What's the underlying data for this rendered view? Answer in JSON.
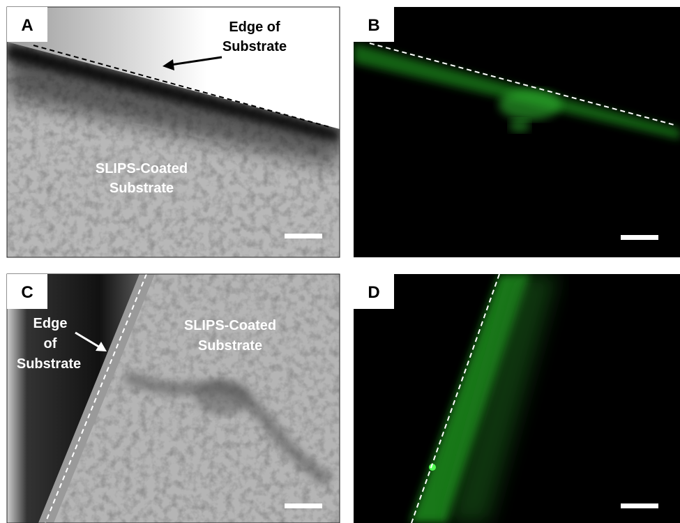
{
  "panels": [
    {
      "label": "A",
      "annotations": [
        [
          "Edge of",
          "Substrate"
        ],
        [
          "SLIPS-Coated",
          "Substrate"
        ]
      ]
    },
    {
      "label": "B",
      "annotations": []
    },
    {
      "label": "C",
      "annotations": [
        [
          "Edge",
          "of",
          "Substrate"
        ],
        [
          "SLIPS-Coated",
          "Substrate"
        ]
      ]
    },
    {
      "label": "D",
      "annotations": []
    }
  ]
}
